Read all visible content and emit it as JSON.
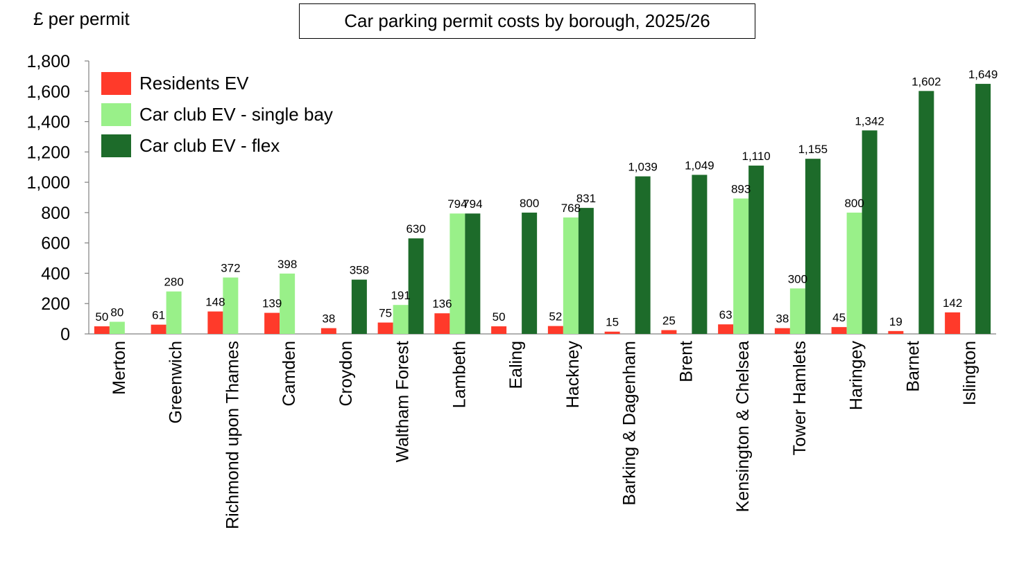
{
  "chart_data": {
    "type": "bar",
    "title": "Car parking permit costs by borough, 2025/26",
    "ylabel": "£ per permit",
    "xlabel": "",
    "ylim": [
      0,
      1800
    ],
    "yticks": [
      0,
      200,
      400,
      600,
      800,
      1000,
      1200,
      1400,
      1600,
      1800
    ],
    "ytick_labels": [
      "0",
      "200",
      "400",
      "600",
      "800",
      "1,000",
      "1,200",
      "1,400",
      "1,600",
      "1,800"
    ],
    "grid": false,
    "legend_position": "top-left",
    "categories": [
      "Merton",
      "Greenwich",
      "Richmond upon Thames",
      "Camden",
      "Croydon",
      "Waltham Forest",
      "Lambeth",
      "Ealing",
      "Hackney",
      "Barking & Dagenham",
      "Brent",
      "Kensington & Chelsea",
      "Tower Hamlets",
      "Haringey",
      "Barnet",
      "Islington"
    ],
    "series": [
      {
        "name": "Residents EV",
        "color": "#ff3a2a",
        "values": [
          50,
          61,
          148,
          139,
          38,
          75,
          136,
          50,
          52,
          15,
          25,
          63,
          38,
          45,
          19,
          142
        ]
      },
      {
        "name": "Car club EV - single bay",
        "color": "#99f089",
        "values": [
          80,
          280,
          372,
          398,
          null,
          191,
          794,
          null,
          768,
          null,
          null,
          893,
          300,
          800,
          null,
          null
        ]
      },
      {
        "name": "Car club EV - flex",
        "color": "#1d6b2a",
        "values": [
          null,
          null,
          null,
          null,
          358,
          630,
          794,
          800,
          831,
          1039,
          1049,
          1110,
          1155,
          1342,
          1602,
          1649
        ]
      }
    ]
  }
}
